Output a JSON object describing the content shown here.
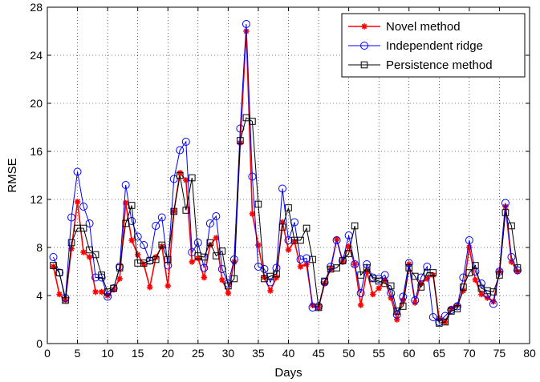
{
  "chart_data": {
    "type": "line",
    "title": "",
    "xlabel": "Days",
    "ylabel": "RMSE",
    "xlim": [
      0,
      80
    ],
    "ylim": [
      0,
      28
    ],
    "xticks": [
      0,
      5,
      10,
      15,
      20,
      25,
      30,
      35,
      40,
      45,
      50,
      55,
      60,
      65,
      70,
      75,
      80
    ],
    "yticks": [
      0,
      4,
      8,
      12,
      16,
      20,
      24,
      28
    ],
    "grid": true,
    "legend_position": "top-right",
    "x": [
      1,
      2,
      3,
      4,
      5,
      6,
      7,
      8,
      9,
      10,
      11,
      12,
      13,
      14,
      15,
      16,
      17,
      18,
      19,
      20,
      21,
      22,
      23,
      24,
      25,
      26,
      27,
      28,
      29,
      30,
      31,
      32,
      33,
      34,
      35,
      36,
      37,
      38,
      39,
      40,
      41,
      42,
      43,
      44,
      45,
      46,
      47,
      48,
      49,
      50,
      51,
      52,
      53,
      54,
      55,
      56,
      57,
      58,
      59,
      60,
      61,
      62,
      63,
      64,
      65,
      66,
      67,
      68,
      69,
      70,
      71,
      72,
      73,
      74,
      75,
      76,
      77,
      78
    ],
    "series": [
      {
        "name": "Novel method",
        "color": "#ff0000",
        "marker": "asterisk",
        "values": [
          6.4,
          4.1,
          3.6,
          7.9,
          11.8,
          7.6,
          7.2,
          4.3,
          4.3,
          4.0,
          4.5,
          5.4,
          11.7,
          8.6,
          7.4,
          6.6,
          4.7,
          7.2,
          8.1,
          4.8,
          11.0,
          14.2,
          13.6,
          6.8,
          7.1,
          5.5,
          8.2,
          8.8,
          5.3,
          4.2,
          6.8,
          16.7,
          26.0,
          10.8,
          8.2,
          5.5,
          4.4,
          5.5,
          10.1,
          7.8,
          8.5,
          6.4,
          6.6,
          3.2,
          3.0,
          5.0,
          6.2,
          8.7,
          6.8,
          8.1,
          6.6,
          3.2,
          6.0,
          4.1,
          4.6,
          5.3,
          3.8,
          2.0,
          3.6,
          6.6,
          3.4,
          5.0,
          5.4,
          5.7,
          2.1,
          1.8,
          2.9,
          3.2,
          4.4,
          8.0,
          5.3,
          4.1,
          3.8,
          3.5,
          6.0,
          11.4,
          6.8,
          6.0
        ]
      },
      {
        "name": "Independent ridge",
        "color": "#0000ff",
        "marker": "circle",
        "values": [
          7.2,
          5.9,
          3.8,
          10.5,
          14.3,
          11.4,
          10.0,
          5.5,
          5.5,
          3.9,
          4.6,
          6.4,
          13.2,
          10.2,
          8.9,
          8.2,
          6.9,
          9.8,
          10.5,
          6.5,
          13.7,
          16.1,
          16.8,
          7.6,
          8.4,
          6.3,
          10.0,
          10.6,
          6.2,
          5.0,
          7.0,
          17.9,
          26.6,
          13.9,
          6.4,
          6.2,
          5.1,
          6.3,
          12.9,
          8.6,
          10.1,
          7.0,
          7.1,
          3.0,
          3.1,
          5.1,
          6.4,
          8.6,
          6.9,
          9.0,
          6.6,
          4.2,
          6.6,
          5.5,
          5.4,
          5.7,
          4.2,
          2.4,
          3.9,
          6.7,
          3.6,
          5.5,
          6.4,
          2.2,
          1.8,
          2.3,
          2.8,
          3.1,
          5.5,
          8.6,
          6.0,
          5.0,
          4.1,
          3.3,
          6.0,
          11.7,
          7.2,
          6.1
        ]
      },
      {
        "name": "Persistence method",
        "color": "#000000",
        "marker": "square",
        "values": [
          6.5,
          5.9,
          3.6,
          8.4,
          9.6,
          9.6,
          7.8,
          7.4,
          5.7,
          4.3,
          4.6,
          6.3,
          10.0,
          11.5,
          6.7,
          6.7,
          6.9,
          7.0,
          8.2,
          7.0,
          11.0,
          14.0,
          11.1,
          13.8,
          7.3,
          7.2,
          8.4,
          7.3,
          7.7,
          4.8,
          5.4,
          16.9,
          18.8,
          18.5,
          11.6,
          5.4,
          5.6,
          5.8,
          9.7,
          11.3,
          8.6,
          8.6,
          9.6,
          7.0,
          3.0,
          5.2,
          6.2,
          6.3,
          6.9,
          7.5,
          9.8,
          5.7,
          6.3,
          5.4,
          5.2,
          5.0,
          4.8,
          2.7,
          3.1,
          6.3,
          5.6,
          4.7,
          5.9,
          5.9,
          1.7,
          1.8,
          2.7,
          2.9,
          4.7,
          5.9,
          6.5,
          4.6,
          4.4,
          4.3,
          5.7,
          10.9,
          9.8,
          6.3
        ]
      }
    ]
  }
}
